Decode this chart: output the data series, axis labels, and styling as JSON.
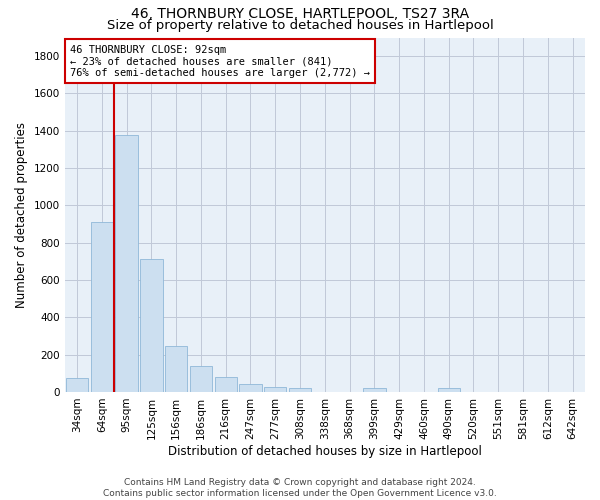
{
  "title": "46, THORNBURY CLOSE, HARTLEPOOL, TS27 3RA",
  "subtitle": "Size of property relative to detached houses in Hartlepool",
  "xlabel": "Distribution of detached houses by size in Hartlepool",
  "ylabel": "Number of detached properties",
  "footer_line1": "Contains HM Land Registry data © Crown copyright and database right 2024.",
  "footer_line2": "Contains public sector information licensed under the Open Government Licence v3.0.",
  "categories": [
    "34sqm",
    "64sqm",
    "95sqm",
    "125sqm",
    "156sqm",
    "186sqm",
    "216sqm",
    "247sqm",
    "277sqm",
    "308sqm",
    "338sqm",
    "368sqm",
    "399sqm",
    "429sqm",
    "460sqm",
    "490sqm",
    "520sqm",
    "551sqm",
    "581sqm",
    "612sqm",
    "642sqm"
  ],
  "values": [
    75,
    910,
    1380,
    715,
    245,
    140,
    80,
    45,
    25,
    20,
    0,
    0,
    20,
    0,
    0,
    20,
    0,
    0,
    0,
    0,
    0
  ],
  "bar_color": "#ccdff0",
  "bar_edge_color": "#90b8d8",
  "highlight_color": "#cc0000",
  "highlight_index": 2,
  "annotation_line1": "46 THORNBURY CLOSE: 92sqm",
  "annotation_line2": "← 23% of detached houses are smaller (841)",
  "annotation_line3": "76% of semi-detached houses are larger (2,772) →",
  "annotation_box_color": "#cc0000",
  "ylim": [
    0,
    1900
  ],
  "yticks": [
    0,
    200,
    400,
    600,
    800,
    1000,
    1200,
    1400,
    1600,
    1800
  ],
  "bg_color": "#ffffff",
  "plot_bg_color": "#e8f0f8",
  "grid_color": "#c0c8d8",
  "title_fontsize": 10,
  "subtitle_fontsize": 9.5,
  "axis_label_fontsize": 8.5,
  "tick_fontsize": 7.5,
  "annotation_fontsize": 7.5,
  "footer_fontsize": 6.5
}
